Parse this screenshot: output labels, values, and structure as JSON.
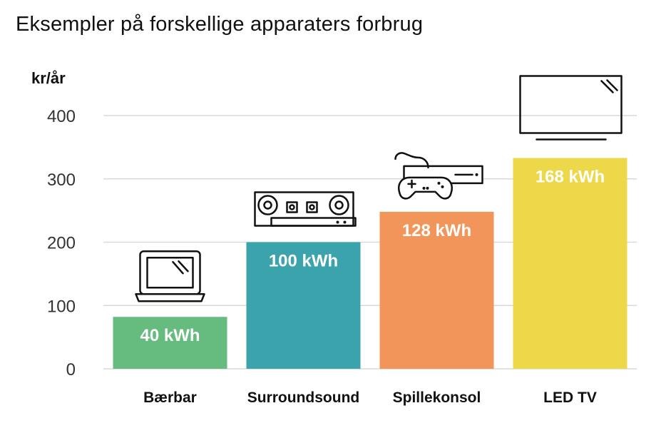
{
  "chart_data": {
    "type": "bar",
    "title": "Eksempler på forskellige apparaters forbrug",
    "ylabel": "kr/år",
    "xlabel": "",
    "ylim": [
      0,
      400
    ],
    "yticks": [
      0,
      100,
      200,
      300,
      400
    ],
    "grid": true,
    "categories": [
      "Bærbar",
      "Surroundsound",
      "Spillekonsol",
      "LED TV"
    ],
    "values": [
      82,
      200,
      248,
      333
    ],
    "bar_labels": [
      "40 kWh",
      "100 kWh",
      "128 kWh",
      "168 kWh"
    ],
    "colors": [
      "#66bb7f",
      "#3aa3ac",
      "#f2955a",
      "#ecd849"
    ],
    "icons": [
      "laptop-icon",
      "stereo-icon",
      "game-console-icon",
      "tv-icon"
    ]
  }
}
